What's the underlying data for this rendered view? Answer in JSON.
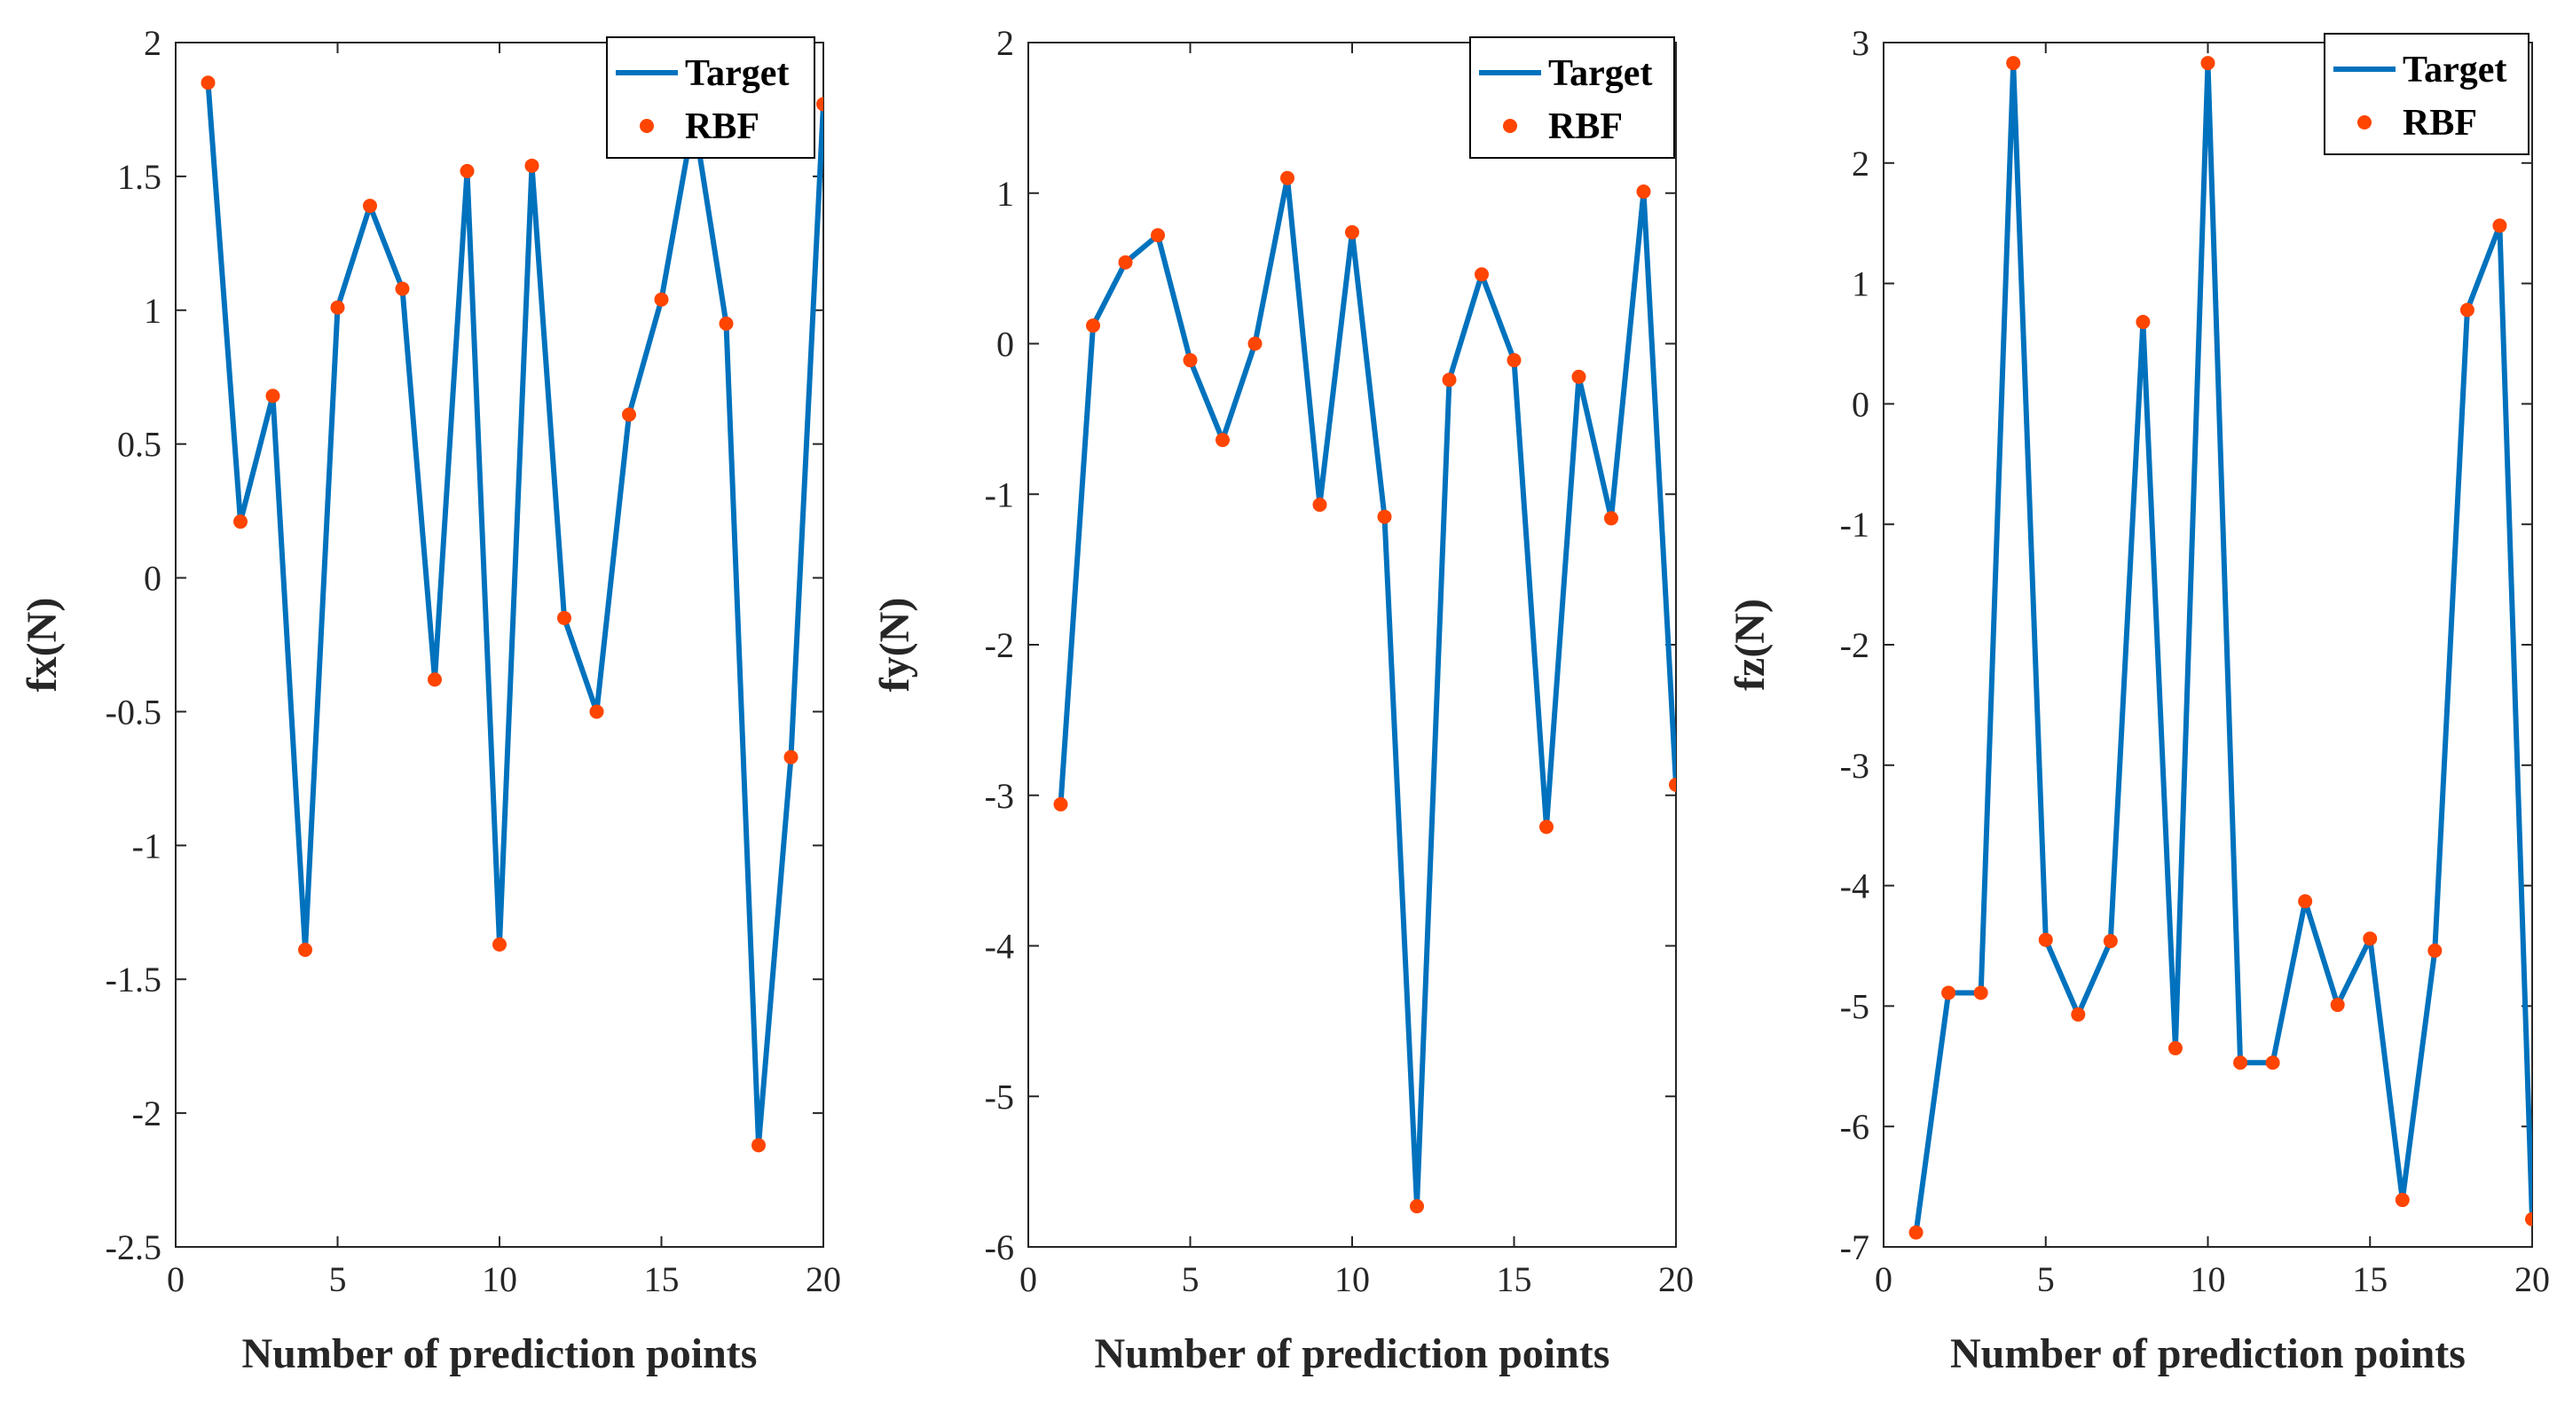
{
  "legend": {
    "target_label": "Target",
    "rbf_label": "RBF"
  },
  "colors": {
    "target": "#0072BD",
    "rbf": "#FF4500",
    "axis": "#262626"
  },
  "chart_data": [
    {
      "type": "line",
      "xlabel": "Number of prediction points",
      "ylabel": "fx(N)",
      "xlim": [
        0,
        20
      ],
      "ylim": [
        -2.5,
        2
      ],
      "xticks": [
        0,
        5,
        10,
        15,
        20
      ],
      "yticks": [
        -2.5,
        -2,
        -1.5,
        -1,
        -0.5,
        0,
        0.5,
        1,
        1.5,
        2
      ],
      "legend_position": "top-right",
      "grid": false,
      "x": [
        1,
        2,
        3,
        4,
        5,
        6,
        7,
        8,
        9,
        10,
        11,
        12,
        13,
        14,
        15,
        16,
        17,
        18,
        19,
        20
      ],
      "series": [
        {
          "name": "Target",
          "style": "line",
          "values": [
            1.85,
            0.21,
            0.68,
            -1.39,
            1.01,
            1.39,
            1.08,
            -0.38,
            1.52,
            -1.37,
            1.54,
            -0.15,
            -0.5,
            0.61,
            1.04,
            1.72,
            0.95,
            -2.12,
            -0.67,
            1.77
          ]
        },
        {
          "name": "RBF",
          "style": "marker",
          "values": [
            1.85,
            0.21,
            0.68,
            -1.39,
            1.01,
            1.39,
            1.08,
            -0.38,
            1.52,
            -1.37,
            1.54,
            -0.15,
            -0.5,
            0.61,
            1.04,
            1.72,
            0.95,
            -2.12,
            -0.67,
            1.77
          ]
        }
      ]
    },
    {
      "type": "line",
      "xlabel": "Number of prediction points",
      "ylabel": "fy(N)",
      "xlim": [
        0,
        20
      ],
      "ylim": [
        -6,
        2
      ],
      "xticks": [
        0,
        5,
        10,
        15,
        20
      ],
      "yticks": [
        -6,
        -5,
        -4,
        -3,
        -2,
        -1,
        0,
        1,
        2
      ],
      "legend_position": "top-right",
      "grid": false,
      "x": [
        1,
        2,
        3,
        4,
        5,
        6,
        7,
        8,
        9,
        10,
        11,
        12,
        13,
        14,
        15,
        16,
        17,
        18,
        19,
        20
      ],
      "series": [
        {
          "name": "Target",
          "style": "line",
          "values": [
            -3.06,
            0.12,
            0.54,
            0.72,
            -0.11,
            -0.64,
            0.0,
            1.1,
            -1.07,
            0.74,
            -1.15,
            -5.73,
            -0.24,
            0.46,
            -0.11,
            -3.21,
            -0.22,
            -1.16,
            1.01,
            -2.93
          ]
        },
        {
          "name": "RBF",
          "style": "marker",
          "values": [
            -3.06,
            0.12,
            0.54,
            0.72,
            -0.11,
            -0.64,
            0.0,
            1.1,
            -1.07,
            0.74,
            -1.15,
            -5.73,
            -0.24,
            0.46,
            -0.11,
            -3.21,
            -0.22,
            -1.16,
            1.01,
            -2.93
          ]
        }
      ]
    },
    {
      "type": "line",
      "xlabel": "Number of prediction points",
      "ylabel": "fz(N)",
      "xlim": [
        0,
        20
      ],
      "ylim": [
        -7,
        3
      ],
      "xticks": [
        0,
        5,
        10,
        15,
        20
      ],
      "yticks": [
        -7,
        -6,
        -5,
        -4,
        -3,
        -2,
        -1,
        0,
        1,
        2,
        3
      ],
      "legend_position": "top-right",
      "grid": false,
      "x": [
        1,
        2,
        3,
        4,
        5,
        6,
        7,
        8,
        9,
        10,
        11,
        12,
        13,
        14,
        15,
        16,
        17,
        18,
        19,
        20
      ],
      "series": [
        {
          "name": "Target",
          "style": "line",
          "values": [
            -6.88,
            -4.89,
            -4.89,
            2.83,
            -4.45,
            -5.07,
            -4.46,
            0.68,
            -5.35,
            2.83,
            -5.47,
            -5.47,
            -4.13,
            -4.99,
            -4.44,
            -6.61,
            -4.54,
            0.78,
            1.48,
            -6.77
          ]
        },
        {
          "name": "RBF",
          "style": "marker",
          "values": [
            -6.88,
            -4.89,
            -4.89,
            2.83,
            -4.45,
            -5.07,
            -4.46,
            0.68,
            -5.35,
            2.83,
            -5.47,
            -5.47,
            -4.13,
            -4.99,
            -4.44,
            -6.61,
            -4.54,
            0.78,
            1.48,
            -6.77
          ]
        }
      ]
    }
  ]
}
